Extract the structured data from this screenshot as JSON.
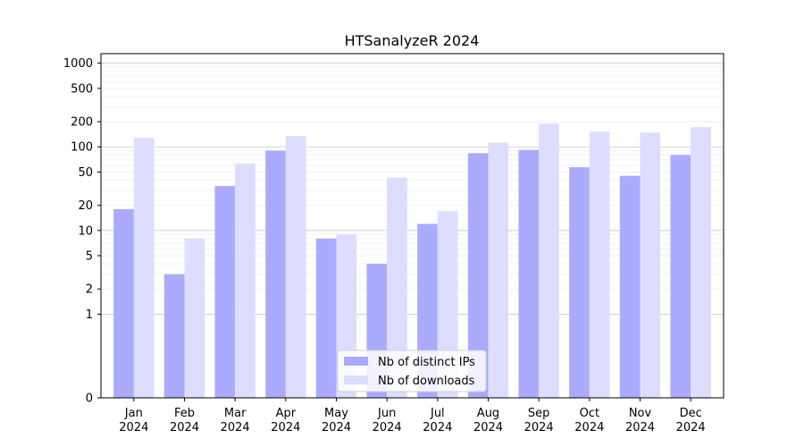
{
  "chart_data": {
    "type": "bar",
    "title": "HTSanalyzeR 2024",
    "xlabel": "",
    "ylabel": "",
    "y_scale": "symlog",
    "ylim": [
      0,
      1300
    ],
    "y_ticks": [
      0,
      1,
      2,
      5,
      10,
      20,
      50,
      100,
      200,
      500,
      1000
    ],
    "y_tick_labels": [
      "0",
      "1",
      "2",
      "5",
      "10",
      "20",
      "50",
      "100",
      "200",
      "500",
      "1000"
    ],
    "grid": "horizontal",
    "legend_position": "bottom-center",
    "categories": [
      [
        "Jan",
        "2024"
      ],
      [
        "Feb",
        "2024"
      ],
      [
        "Mar",
        "2024"
      ],
      [
        "Apr",
        "2024"
      ],
      [
        "May",
        "2024"
      ],
      [
        "Jun",
        "2024"
      ],
      [
        "Jul",
        "2024"
      ],
      [
        "Aug",
        "2024"
      ],
      [
        "Sep",
        "2024"
      ],
      [
        "Oct",
        "2024"
      ],
      [
        "Nov",
        "2024"
      ],
      [
        "Dec",
        "2024"
      ]
    ],
    "series": [
      {
        "name": "Nb of distinct IPs",
        "color": "#aaaaff",
        "values": [
          18,
          3,
          34,
          90,
          8,
          4,
          12,
          84,
          92,
          57,
          45,
          80
        ]
      },
      {
        "name": "Nb of downloads",
        "color": "#ddddff",
        "values": [
          128,
          8,
          63,
          135,
          9,
          43,
          17,
          112,
          190,
          152,
          148,
          172
        ]
      }
    ]
  }
}
